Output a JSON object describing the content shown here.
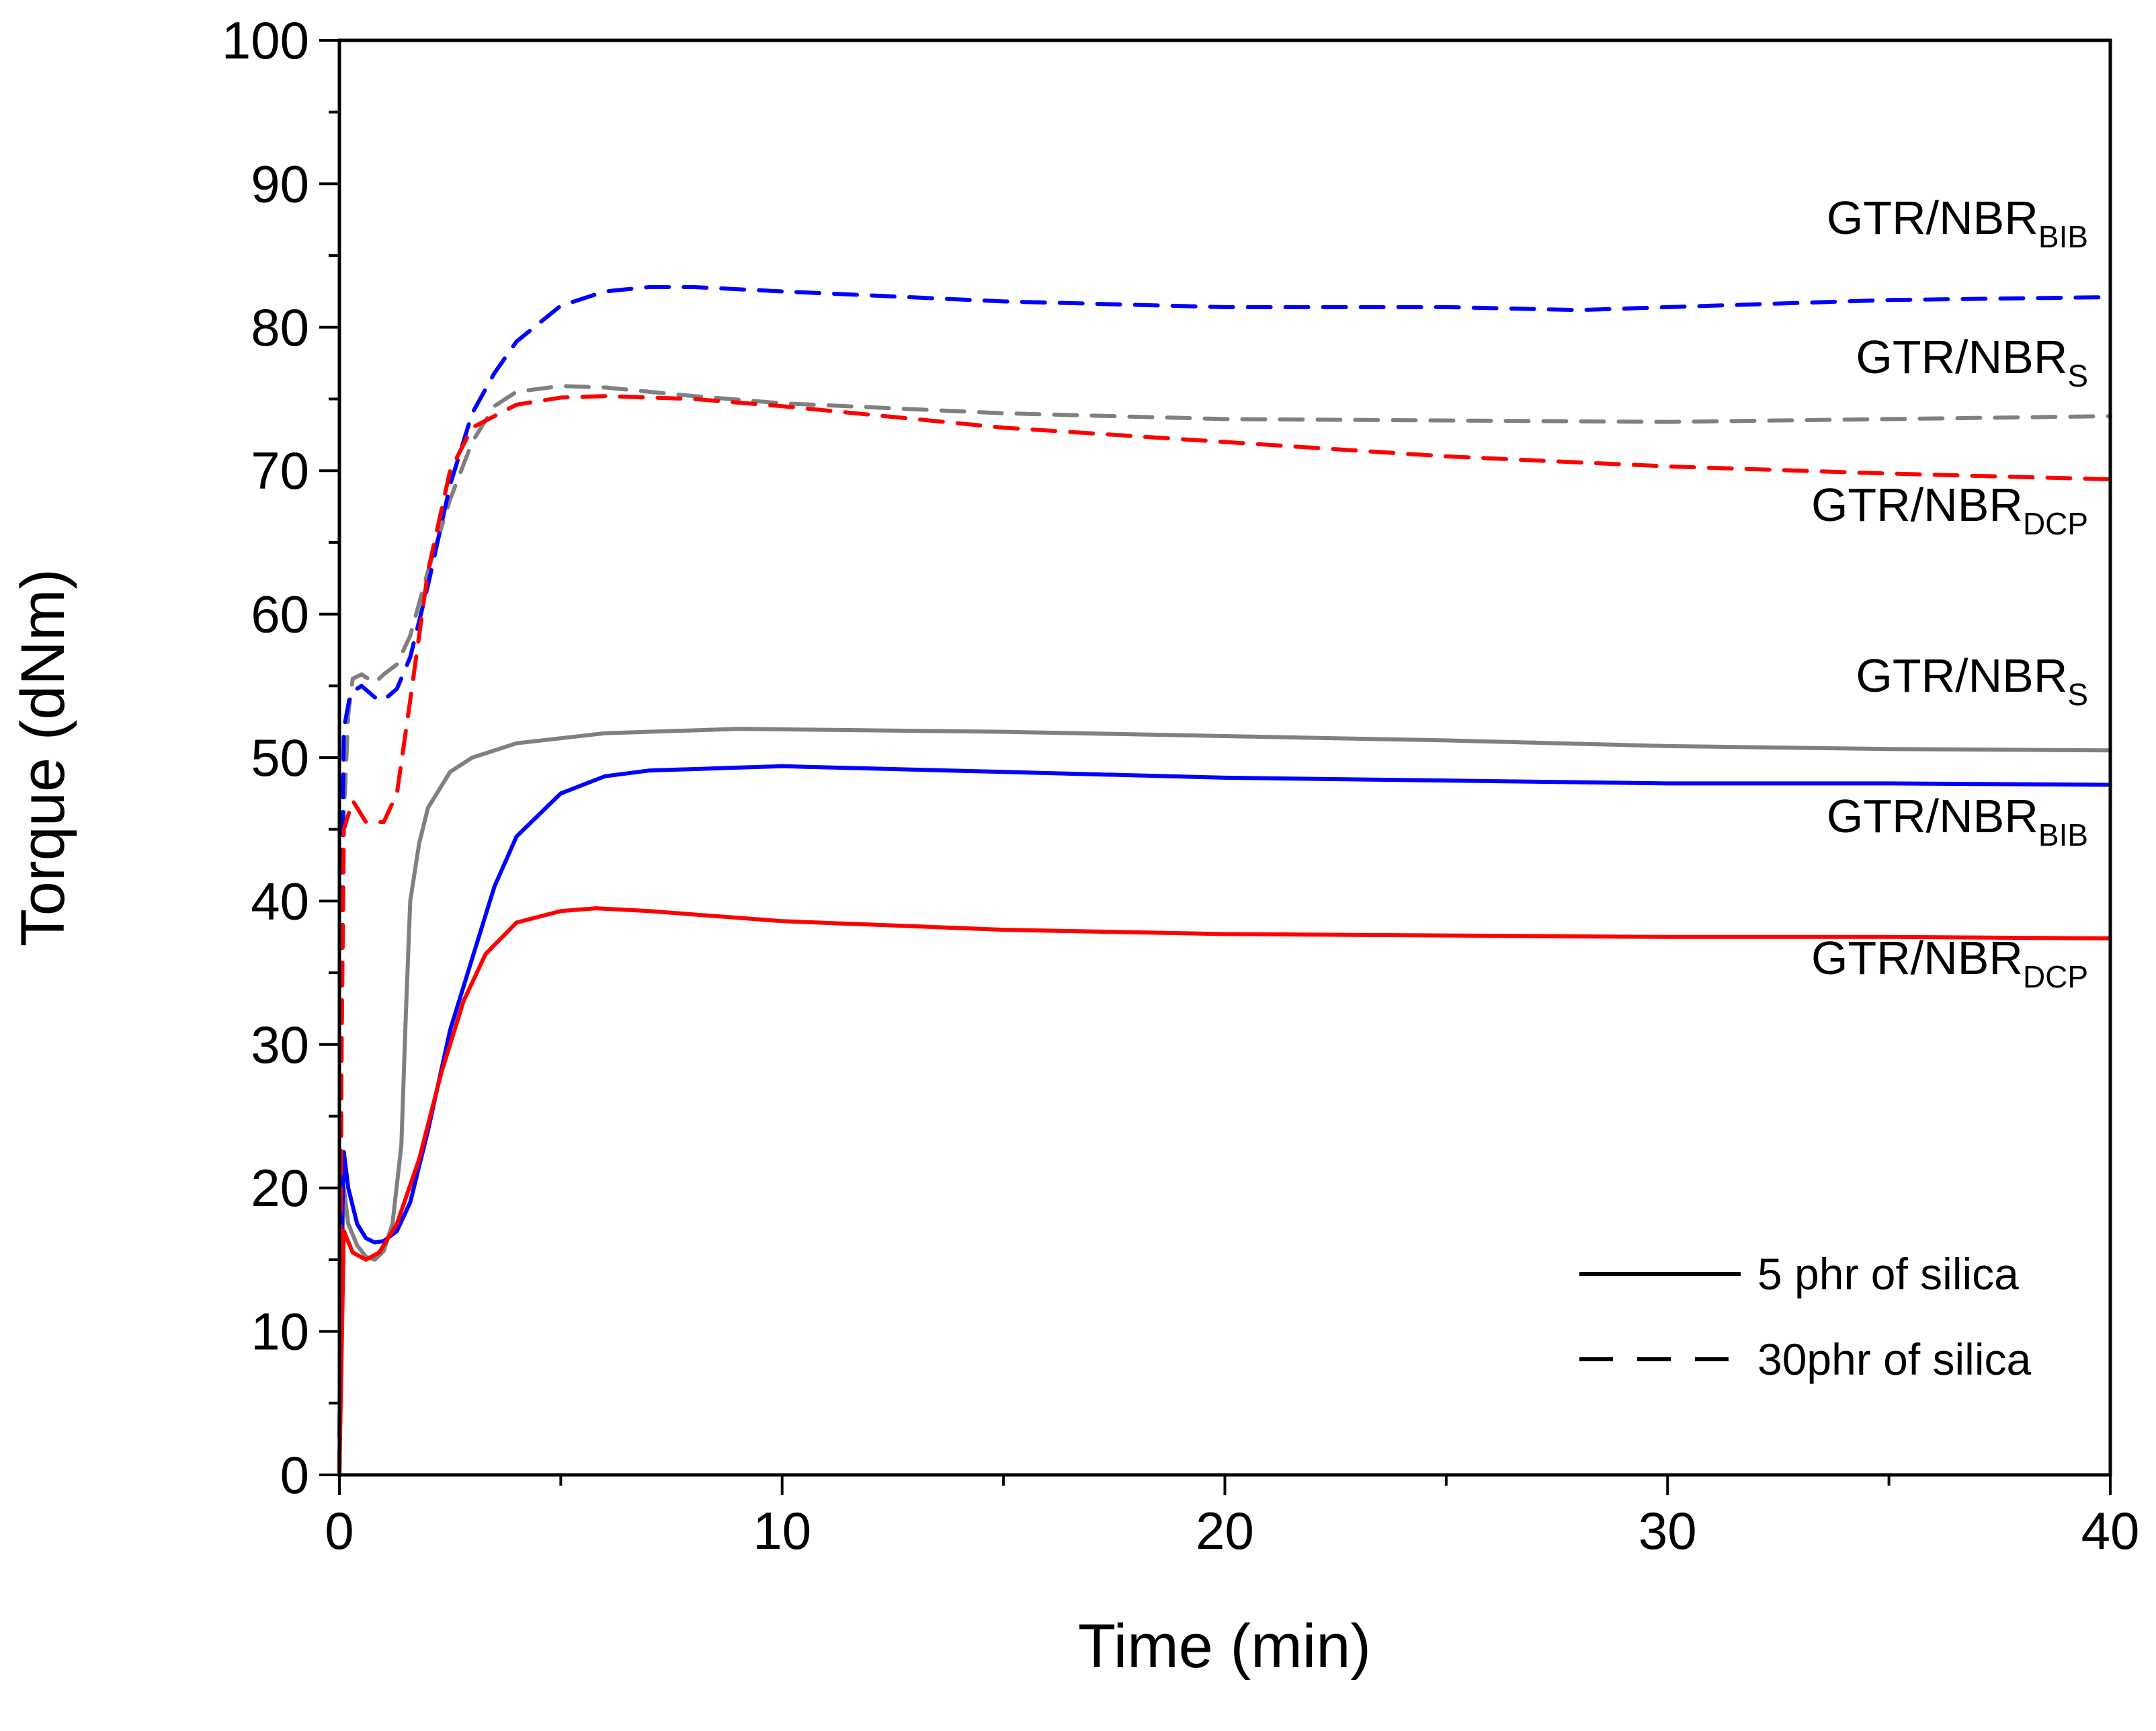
{
  "chart_data": {
    "type": "line",
    "xlabel": "Time (min)",
    "ylabel": "Torque (dNm)",
    "xlim": [
      0,
      40
    ],
    "ylim": [
      0,
      100
    ],
    "xticks": [
      0,
      10,
      20,
      30,
      40
    ],
    "yticks": [
      0,
      10,
      20,
      30,
      40,
      50,
      60,
      70,
      80,
      90,
      100
    ],
    "grid": false,
    "legend_position": "bottom-right",
    "legend": [
      {
        "label": "5 phr of silica",
        "style": "solid"
      },
      {
        "label": "30phr of silica",
        "style": "dashed"
      }
    ],
    "annotations": [
      {
        "main": "GTR/NBR",
        "sub": "BIB",
        "x": 39.5,
        "y": 86.5
      },
      {
        "main": "GTR/NBR",
        "sub": "S",
        "x": 39.5,
        "y": 76.8
      },
      {
        "main": "GTR/NBR",
        "sub": "DCP",
        "x": 39.5,
        "y": 66.5
      },
      {
        "main": "GTR/NBR",
        "sub": "S",
        "x": 39.5,
        "y": 54.6
      },
      {
        "main": "GTR/NBR",
        "sub": "BIB",
        "x": 39.5,
        "y": 44.8
      },
      {
        "main": "GTR/NBR",
        "sub": "DCP",
        "x": 39.5,
        "y": 34.9
      }
    ],
    "series": [
      {
        "color": "#808080",
        "style": "solid",
        "points": [
          [
            0,
            0
          ],
          [
            0.05,
            14
          ],
          [
            0.1,
            20
          ],
          [
            0.2,
            17.5
          ],
          [
            0.4,
            16
          ],
          [
            0.6,
            15.2
          ],
          [
            0.8,
            15
          ],
          [
            1.0,
            15.6
          ],
          [
            1.2,
            17.5
          ],
          [
            1.4,
            23
          ],
          [
            1.5,
            32
          ],
          [
            1.6,
            40
          ],
          [
            1.8,
            44
          ],
          [
            2.0,
            46.5
          ],
          [
            2.5,
            49
          ],
          [
            3,
            50
          ],
          [
            4,
            51
          ],
          [
            6,
            51.7
          ],
          [
            9,
            52
          ],
          [
            15,
            51.8
          ],
          [
            20,
            51.5
          ],
          [
            25,
            51.2
          ],
          [
            30,
            50.8
          ],
          [
            35,
            50.6
          ],
          [
            40,
            50.5
          ]
        ]
      },
      {
        "color": "#0000ff",
        "style": "solid",
        "points": [
          [
            0,
            0
          ],
          [
            0.05,
            16
          ],
          [
            0.1,
            22.5
          ],
          [
            0.2,
            20
          ],
          [
            0.4,
            17.5
          ],
          [
            0.6,
            16.5
          ],
          [
            0.8,
            16.2
          ],
          [
            1.0,
            16.3
          ],
          [
            1.3,
            17
          ],
          [
            1.6,
            19
          ],
          [
            2,
            24
          ],
          [
            2.5,
            31
          ],
          [
            3,
            36
          ],
          [
            3.5,
            41
          ],
          [
            4,
            44.5
          ],
          [
            5,
            47.5
          ],
          [
            6,
            48.7
          ],
          [
            7,
            49.1
          ],
          [
            9,
            49.3
          ],
          [
            10,
            49.4
          ],
          [
            15,
            49
          ],
          [
            20,
            48.6
          ],
          [
            25,
            48.4
          ],
          [
            30,
            48.2
          ],
          [
            35,
            48.2
          ],
          [
            40,
            48.1
          ]
        ]
      },
      {
        "color": "#ff0000",
        "style": "solid",
        "points": [
          [
            0,
            0
          ],
          [
            0.1,
            17
          ],
          [
            0.3,
            15.5
          ],
          [
            0.6,
            15
          ],
          [
            0.9,
            15.5
          ],
          [
            1.3,
            17.5
          ],
          [
            1.8,
            22
          ],
          [
            2.3,
            28
          ],
          [
            2.8,
            33
          ],
          [
            3.3,
            36.3
          ],
          [
            4,
            38.5
          ],
          [
            5,
            39.3
          ],
          [
            5.8,
            39.5
          ],
          [
            7,
            39.3
          ],
          [
            10,
            38.6
          ],
          [
            15,
            38
          ],
          [
            20,
            37.7
          ],
          [
            25,
            37.6
          ],
          [
            30,
            37.5
          ],
          [
            35,
            37.5
          ],
          [
            40,
            37.4
          ]
        ]
      },
      {
        "color": "#808080",
        "style": "dashed",
        "points": [
          [
            0,
            0
          ],
          [
            0.05,
            30
          ],
          [
            0.1,
            46
          ],
          [
            0.2,
            53
          ],
          [
            0.3,
            55.5
          ],
          [
            0.5,
            55.8
          ],
          [
            0.8,
            55.2
          ],
          [
            1.0,
            55.8
          ],
          [
            1.3,
            56.5
          ],
          [
            1.6,
            58.5
          ],
          [
            2.0,
            63
          ],
          [
            2.5,
            68
          ],
          [
            3,
            72
          ],
          [
            3.5,
            74.5
          ],
          [
            4,
            75.5
          ],
          [
            5,
            75.9
          ],
          [
            6,
            75.8
          ],
          [
            8,
            75.2
          ],
          [
            10,
            74.7
          ],
          [
            15,
            74
          ],
          [
            20,
            73.6
          ],
          [
            25,
            73.5
          ],
          [
            30,
            73.4
          ],
          [
            35,
            73.6
          ],
          [
            40,
            73.8
          ]
        ]
      },
      {
        "color": "#0000ff",
        "style": "dashed",
        "points": [
          [
            0,
            0
          ],
          [
            0.05,
            40
          ],
          [
            0.1,
            52
          ],
          [
            0.25,
            54.5
          ],
          [
            0.5,
            55
          ],
          [
            0.8,
            54.2
          ],
          [
            1.0,
            54
          ],
          [
            1.3,
            54.8
          ],
          [
            1.6,
            57
          ],
          [
            2.0,
            62
          ],
          [
            2.5,
            69
          ],
          [
            3,
            74
          ],
          [
            3.5,
            76.8
          ],
          [
            4,
            79
          ],
          [
            5,
            81.5
          ],
          [
            6,
            82.5
          ],
          [
            7,
            82.8
          ],
          [
            8,
            82.8
          ],
          [
            10,
            82.5
          ],
          [
            15,
            81.8
          ],
          [
            20,
            81.4
          ],
          [
            25,
            81.4
          ],
          [
            28,
            81.2
          ],
          [
            30,
            81.4
          ],
          [
            35,
            81.9
          ],
          [
            40,
            82.1
          ]
        ]
      },
      {
        "color": "#ff0000",
        "style": "dashed",
        "points": [
          [
            0,
            0
          ],
          [
            0.05,
            30
          ],
          [
            0.1,
            45
          ],
          [
            0.3,
            47
          ],
          [
            0.6,
            45.5
          ],
          [
            1.0,
            45.5
          ],
          [
            1.3,
            47.5
          ],
          [
            1.6,
            54
          ],
          [
            2.0,
            63
          ],
          [
            2.5,
            70
          ],
          [
            3,
            73
          ],
          [
            4,
            74.6
          ],
          [
            5,
            75.1
          ],
          [
            6,
            75.2
          ],
          [
            8,
            75
          ],
          [
            10,
            74.5
          ],
          [
            15,
            73
          ],
          [
            20,
            72
          ],
          [
            25,
            71
          ],
          [
            30,
            70.3
          ],
          [
            35,
            69.8
          ],
          [
            40,
            69.4
          ]
        ]
      }
    ]
  }
}
